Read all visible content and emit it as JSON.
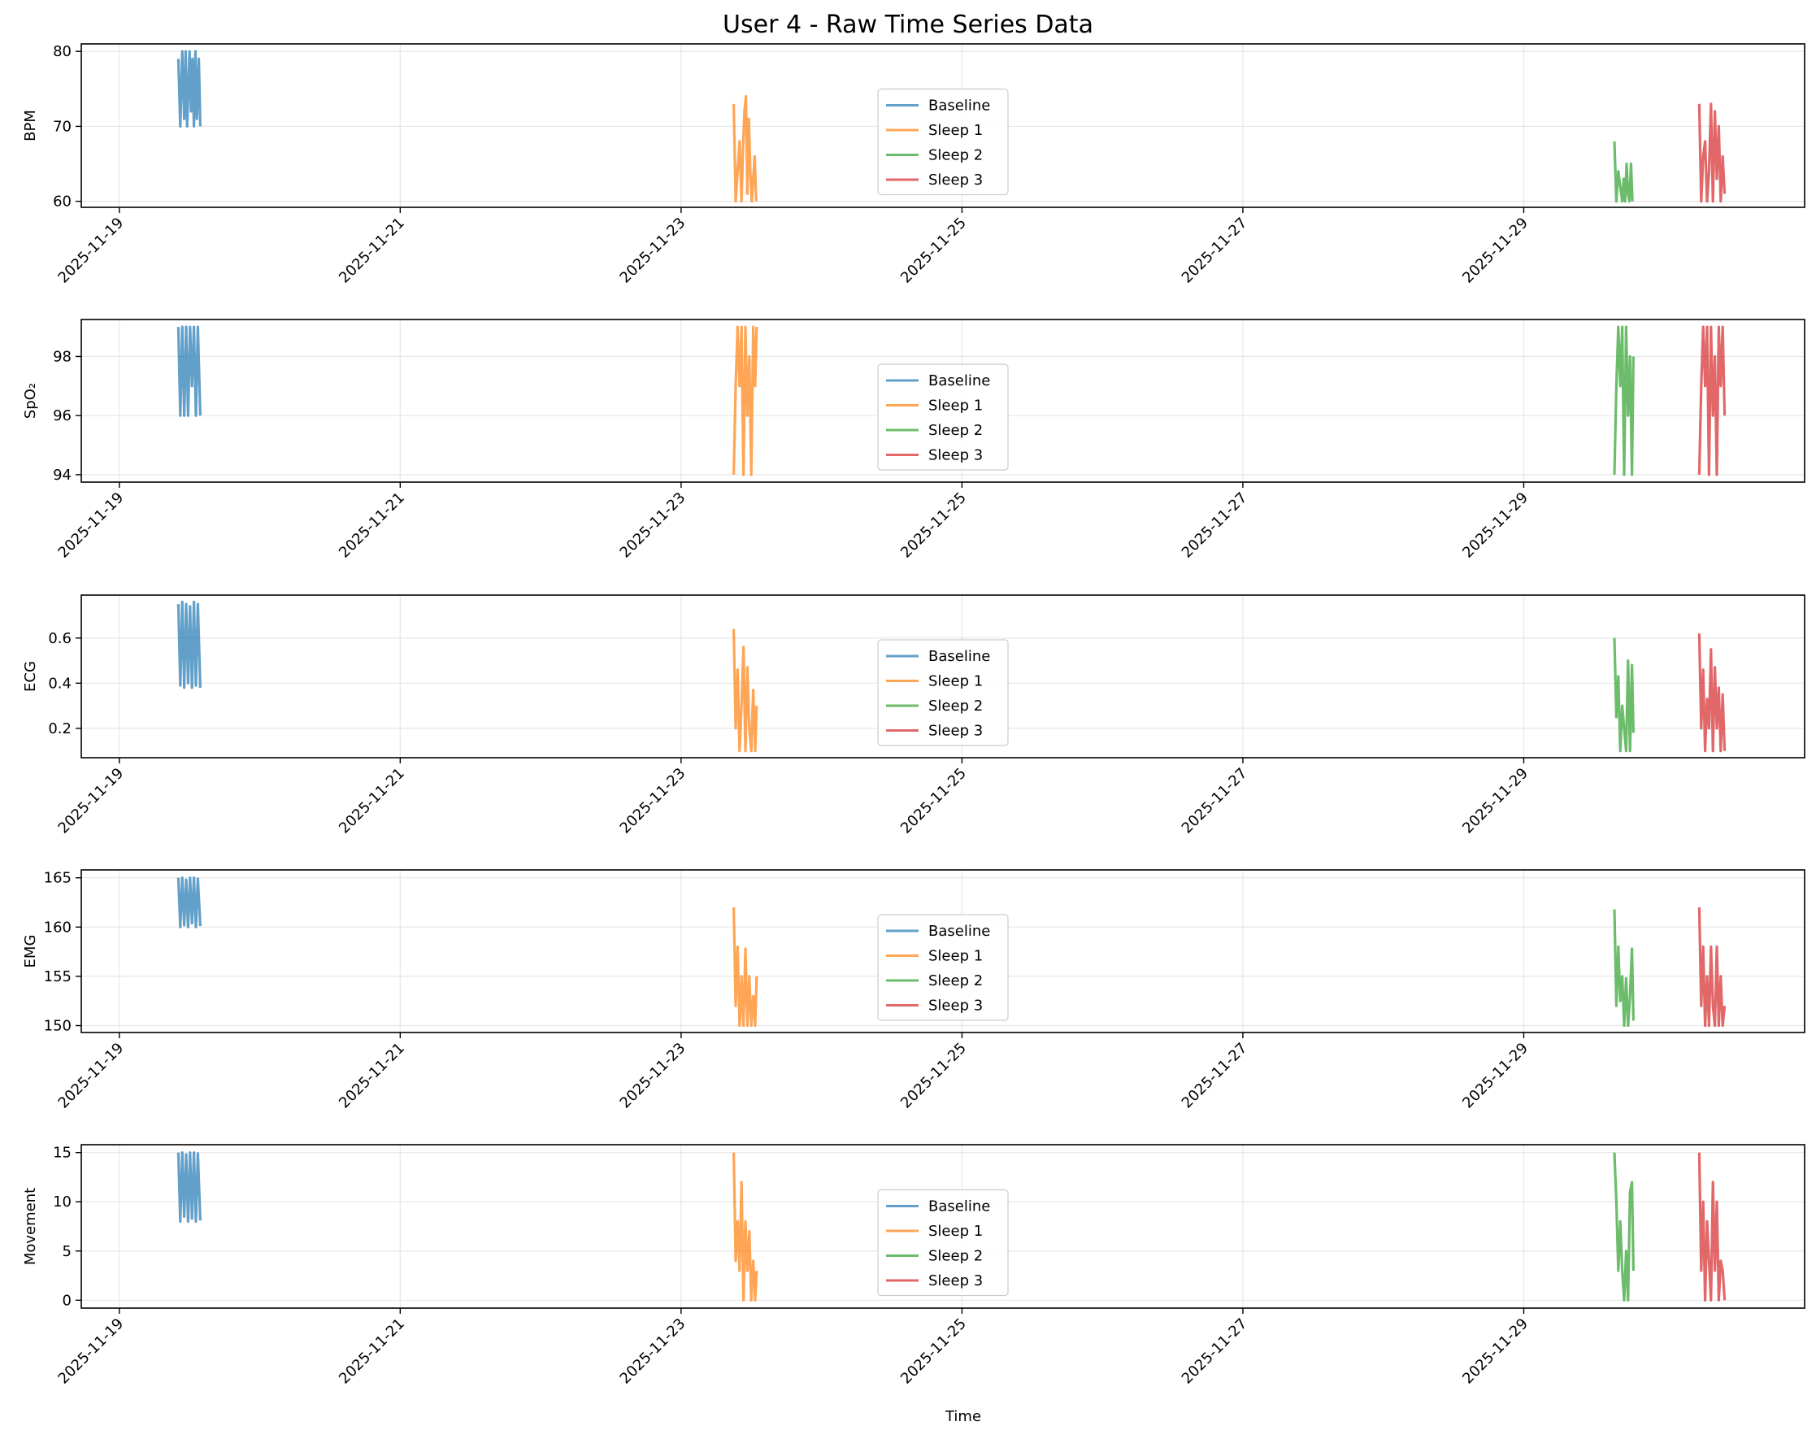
{
  "title": "User 4 - Raw Time Series Data",
  "xlabel": "Time",
  "x_tick_labels": [
    "2025-11-19",
    "2025-11-21",
    "2025-11-23",
    "2025-11-25",
    "2025-11-27",
    "2025-11-29"
  ],
  "legend": {
    "placement": "center",
    "entries": [
      {
        "name": "Baseline",
        "color": "#1f77b4"
      },
      {
        "name": "Sleep 1",
        "color": "#ff7f0e"
      },
      {
        "name": "Sleep 2",
        "color": "#2ca02c"
      },
      {
        "name": "Sleep 3",
        "color": "#d62728"
      }
    ]
  },
  "chart_data": [
    {
      "type": "line",
      "ylabel": "BPM",
      "ylim": [
        59.2,
        81
      ],
      "yticks": [
        60,
        70,
        80
      ],
      "xlim": [
        "2025-11-18T17:30",
        "2025-12-01T00:00"
      ],
      "grid": true,
      "series": [
        {
          "name": "Baseline",
          "color": "#1f77b4",
          "x": [
            "2025-11-19T10:05",
            "2025-11-19T10:25",
            "2025-11-19T10:45",
            "2025-11-19T11:05",
            "2025-11-19T11:20",
            "2025-11-19T11:35",
            "2025-11-19T12:00",
            "2025-11-19T12:15",
            "2025-11-19T12:30",
            "2025-11-19T12:45",
            "2025-11-19T13:00",
            "2025-11-19T13:15",
            "2025-11-19T13:35",
            "2025-11-19T13:50"
          ],
          "y": [
            79,
            70,
            80,
            71,
            80,
            70,
            80,
            72,
            79,
            70,
            80,
            71,
            79,
            70
          ]
        },
        {
          "name": "Sleep 1",
          "color": "#ff7f0e",
          "x": [
            "2025-11-23T09:00",
            "2025-11-23T09:20",
            "2025-11-23T09:40",
            "2025-11-23T10:00",
            "2025-11-23T10:20",
            "2025-11-23T10:35",
            "2025-11-23T10:50",
            "2025-11-23T11:05",
            "2025-11-23T11:20",
            "2025-11-23T11:35",
            "2025-11-23T11:50",
            "2025-11-23T12:05",
            "2025-11-23T12:20",
            "2025-11-23T12:35",
            "2025-11-23T12:50"
          ],
          "y": [
            73,
            60,
            64,
            68,
            60,
            67,
            72,
            74,
            61,
            71,
            64,
            60,
            63,
            66,
            60
          ]
        },
        {
          "name": "Sleep 2",
          "color": "#2ca02c",
          "x": [
            "2025-11-29T15:30",
            "2025-11-29T15:50",
            "2025-11-29T16:10",
            "2025-11-29T16:30",
            "2025-11-29T16:50",
            "2025-11-29T17:05",
            "2025-11-29T17:20",
            "2025-11-29T17:35",
            "2025-11-29T17:50",
            "2025-11-29T18:05",
            "2025-11-29T18:20",
            "2025-11-29T18:35"
          ],
          "y": [
            68,
            60,
            64,
            62,
            60,
            63,
            60,
            65,
            61,
            60,
            65,
            60
          ]
        },
        {
          "name": "Sleep 3",
          "color": "#d62728",
          "x": [
            "2025-11-30T06:00",
            "2025-11-30T06:20",
            "2025-11-30T06:40",
            "2025-11-30T07:00",
            "2025-11-30T07:20",
            "2025-11-30T07:40",
            "2025-11-30T08:00",
            "2025-11-30T08:20",
            "2025-11-30T08:40",
            "2025-11-30T09:00",
            "2025-11-30T09:20",
            "2025-11-30T09:40",
            "2025-11-30T10:00",
            "2025-11-30T10:20"
          ],
          "y": [
            73,
            60,
            66,
            68,
            60,
            64,
            73,
            60,
            72,
            63,
            70,
            60,
            66,
            61
          ]
        }
      ]
    },
    {
      "type": "line",
      "ylabel": "SpO₂",
      "ylim": [
        93.75,
        99.25
      ],
      "yticks": [
        94,
        96,
        98
      ],
      "xlim": [
        "2025-11-18T17:30",
        "2025-12-01T00:00"
      ],
      "grid": true,
      "series": [
        {
          "name": "Baseline",
          "color": "#1f77b4",
          "x": [
            "2025-11-19T10:05",
            "2025-11-19T10:25",
            "2025-11-19T10:45",
            "2025-11-19T11:05",
            "2025-11-19T11:25",
            "2025-11-19T11:45",
            "2025-11-19T12:05",
            "2025-11-19T12:25",
            "2025-11-19T12:45",
            "2025-11-19T13:05",
            "2025-11-19T13:25",
            "2025-11-19T13:50"
          ],
          "y": [
            99,
            96,
            99,
            96,
            99,
            96,
            99,
            97,
            99,
            96,
            99,
            96
          ]
        },
        {
          "name": "Sleep 1",
          "color": "#ff7f0e",
          "x": [
            "2025-11-23T09:00",
            "2025-11-23T09:20",
            "2025-11-23T09:40",
            "2025-11-23T10:00",
            "2025-11-23T10:20",
            "2025-11-23T10:40",
            "2025-11-23T11:00",
            "2025-11-23T11:20",
            "2025-11-23T11:40",
            "2025-11-23T12:00",
            "2025-11-23T12:20",
            "2025-11-23T12:40",
            "2025-11-23T12:55"
          ],
          "y": [
            94,
            97,
            99,
            97,
            99,
            94,
            99,
            96,
            98,
            94,
            99,
            97,
            99
          ]
        },
        {
          "name": "Sleep 2",
          "color": "#2ca02c",
          "x": [
            "2025-11-29T15:30",
            "2025-11-29T15:50",
            "2025-11-29T16:10",
            "2025-11-29T16:30",
            "2025-11-29T16:50",
            "2025-11-29T17:10",
            "2025-11-29T17:30",
            "2025-11-29T17:50",
            "2025-11-29T18:10",
            "2025-11-29T18:30",
            "2025-11-29T18:45"
          ],
          "y": [
            94,
            97,
            99,
            97,
            99,
            94,
            99,
            96,
            98,
            94,
            98
          ]
        },
        {
          "name": "Sleep 3",
          "color": "#d62728",
          "x": [
            "2025-11-30T06:00",
            "2025-11-30T06:20",
            "2025-11-30T06:40",
            "2025-11-30T07:00",
            "2025-11-30T07:20",
            "2025-11-30T07:40",
            "2025-11-30T08:00",
            "2025-11-30T08:20",
            "2025-11-30T08:40",
            "2025-11-30T09:00",
            "2025-11-30T09:20",
            "2025-11-30T09:40",
            "2025-11-30T10:00",
            "2025-11-30T10:20"
          ],
          "y": [
            94,
            97,
            99,
            97,
            99,
            94,
            99,
            96,
            98,
            94,
            99,
            97,
            99,
            96
          ]
        }
      ]
    },
    {
      "type": "line",
      "ylabel": "ECG",
      "ylim": [
        0.07,
        0.79
      ],
      "yticks": [
        0.2,
        0.4,
        0.6
      ],
      "xlim": [
        "2025-11-18T17:30",
        "2025-12-01T00:00"
      ],
      "grid": true,
      "series": [
        {
          "name": "Baseline",
          "color": "#1f77b4",
          "x": [
            "2025-11-19T10:05",
            "2025-11-19T10:25",
            "2025-11-19T10:45",
            "2025-11-19T11:05",
            "2025-11-19T11:25",
            "2025-11-19T11:45",
            "2025-11-19T12:05",
            "2025-11-19T12:25",
            "2025-11-19T12:45",
            "2025-11-19T13:05",
            "2025-11-19T13:25",
            "2025-11-19T13:50"
          ],
          "y": [
            0.75,
            0.39,
            0.76,
            0.38,
            0.75,
            0.4,
            0.74,
            0.38,
            0.76,
            0.39,
            0.75,
            0.38
          ]
        },
        {
          "name": "Sleep 1",
          "color": "#ff7f0e",
          "x": [
            "2025-11-23T09:00",
            "2025-11-23T09:20",
            "2025-11-23T09:40",
            "2025-11-23T10:00",
            "2025-11-23T10:20",
            "2025-11-23T10:40",
            "2025-11-23T11:00",
            "2025-11-23T11:20",
            "2025-11-23T11:40",
            "2025-11-23T12:00",
            "2025-11-23T12:20",
            "2025-11-23T12:40",
            "2025-11-23T12:55"
          ],
          "y": [
            0.64,
            0.2,
            0.46,
            0.1,
            0.3,
            0.56,
            0.1,
            0.47,
            0.2,
            0.1,
            0.37,
            0.1,
            0.3
          ]
        },
        {
          "name": "Sleep 2",
          "color": "#2ca02c",
          "x": [
            "2025-11-29T15:30",
            "2025-11-29T15:50",
            "2025-11-29T16:10",
            "2025-11-29T16:30",
            "2025-11-29T16:50",
            "2025-11-29T17:10",
            "2025-11-29T17:30",
            "2025-11-29T17:50",
            "2025-11-29T18:10",
            "2025-11-29T18:30",
            "2025-11-29T18:45"
          ],
          "y": [
            0.6,
            0.25,
            0.43,
            0.1,
            0.3,
            0.2,
            0.1,
            0.5,
            0.1,
            0.48,
            0.18
          ]
        },
        {
          "name": "Sleep 3",
          "color": "#d62728",
          "x": [
            "2025-11-30T06:00",
            "2025-11-30T06:20",
            "2025-11-30T06:40",
            "2025-11-30T07:00",
            "2025-11-30T07:20",
            "2025-11-30T07:40",
            "2025-11-30T08:00",
            "2025-11-30T08:20",
            "2025-11-30T08:40",
            "2025-11-30T09:00",
            "2025-11-30T09:20",
            "2025-11-30T09:40",
            "2025-11-30T10:00",
            "2025-11-30T10:20"
          ],
          "y": [
            0.62,
            0.2,
            0.46,
            0.1,
            0.33,
            0.2,
            0.55,
            0.1,
            0.47,
            0.2,
            0.38,
            0.1,
            0.35,
            0.1
          ]
        }
      ]
    },
    {
      "type": "line",
      "ylabel": "EMG",
      "ylim": [
        149.3,
        165.8
      ],
      "yticks": [
        150,
        155,
        160,
        165
      ],
      "xlim": [
        "2025-11-18T17:30",
        "2025-12-01T00:00"
      ],
      "grid": true,
      "series": [
        {
          "name": "Baseline",
          "color": "#1f77b4",
          "x": [
            "2025-11-19T10:05",
            "2025-11-19T10:25",
            "2025-11-19T10:45",
            "2025-11-19T11:05",
            "2025-11-19T11:25",
            "2025-11-19T11:45",
            "2025-11-19T12:05",
            "2025-11-19T12:25",
            "2025-11-19T12:45",
            "2025-11-19T13:05",
            "2025-11-19T13:25",
            "2025-11-19T13:50"
          ],
          "y": [
            165,
            160,
            165,
            160.2,
            164.8,
            160,
            165,
            160.4,
            165,
            160,
            164.9,
            160.1
          ]
        },
        {
          "name": "Sleep 1",
          "color": "#ff7f0e",
          "x": [
            "2025-11-23T09:00",
            "2025-11-23T09:20",
            "2025-11-23T09:40",
            "2025-11-23T10:00",
            "2025-11-23T10:20",
            "2025-11-23T10:40",
            "2025-11-23T11:00",
            "2025-11-23T11:20",
            "2025-11-23T11:40",
            "2025-11-23T12:00",
            "2025-11-23T12:20",
            "2025-11-23T12:40",
            "2025-11-23T12:55"
          ],
          "y": [
            162,
            152,
            158,
            150,
            155,
            150,
            157.8,
            150,
            155,
            150,
            153,
            150,
            155
          ]
        },
        {
          "name": "Sleep 2",
          "color": "#2ca02c",
          "x": [
            "2025-11-29T15:30",
            "2025-11-29T15:50",
            "2025-11-29T16:10",
            "2025-11-29T16:30",
            "2025-11-29T16:50",
            "2025-11-29T17:10",
            "2025-11-29T17:30",
            "2025-11-29T17:50",
            "2025-11-29T18:10",
            "2025-11-29T18:30",
            "2025-11-29T18:45"
          ],
          "y": [
            161.8,
            152,
            158,
            152.5,
            155,
            150,
            154.8,
            150,
            153,
            157.8,
            150.5
          ]
        },
        {
          "name": "Sleep 3",
          "color": "#d62728",
          "x": [
            "2025-11-30T06:00",
            "2025-11-30T06:20",
            "2025-11-30T06:40",
            "2025-11-30T07:00",
            "2025-11-30T07:20",
            "2025-11-30T07:40",
            "2025-11-30T08:00",
            "2025-11-30T08:20",
            "2025-11-30T08:40",
            "2025-11-30T09:00",
            "2025-11-30T09:20",
            "2025-11-30T09:40",
            "2025-11-30T10:00",
            "2025-11-30T10:20"
          ],
          "y": [
            162,
            152,
            158,
            150,
            155,
            150,
            158,
            152,
            150,
            158,
            150,
            155,
            150,
            152
          ]
        }
      ]
    },
    {
      "type": "line",
      "ylabel": "Movement",
      "ylim": [
        -0.8,
        15.8
      ],
      "yticks": [
        0,
        5,
        10,
        15
      ],
      "xlim": [
        "2025-11-18T17:30",
        "2025-12-01T00:00"
      ],
      "grid": true,
      "series": [
        {
          "name": "Baseline",
          "color": "#1f77b4",
          "x": [
            "2025-11-19T10:05",
            "2025-11-19T10:25",
            "2025-11-19T10:45",
            "2025-11-19T11:05",
            "2025-11-19T11:25",
            "2025-11-19T11:45",
            "2025-11-19T12:05",
            "2025-11-19T12:25",
            "2025-11-19T12:45",
            "2025-11-19T13:05",
            "2025-11-19T13:25",
            "2025-11-19T13:50"
          ],
          "y": [
            15,
            8,
            15,
            8.5,
            14.8,
            8,
            15,
            8.3,
            15,
            8,
            14.9,
            8.1
          ]
        },
        {
          "name": "Sleep 1",
          "color": "#ff7f0e",
          "x": [
            "2025-11-23T09:00",
            "2025-11-23T09:20",
            "2025-11-23T09:40",
            "2025-11-23T10:00",
            "2025-11-23T10:20",
            "2025-11-23T10:40",
            "2025-11-23T11:00",
            "2025-11-23T11:20",
            "2025-11-23T11:40",
            "2025-11-23T12:00",
            "2025-11-23T12:20",
            "2025-11-23T12:40",
            "2025-11-23T12:55"
          ],
          "y": [
            15,
            4,
            8,
            3,
            12,
            0,
            8,
            3,
            7,
            0,
            4,
            0,
            3
          ]
        },
        {
          "name": "Sleep 2",
          "color": "#2ca02c",
          "x": [
            "2025-11-29T15:30",
            "2025-11-29T15:50",
            "2025-11-29T16:10",
            "2025-11-29T16:30",
            "2025-11-29T16:50",
            "2025-11-29T17:10",
            "2025-11-29T17:30",
            "2025-11-29T17:50",
            "2025-11-29T18:10",
            "2025-11-29T18:30",
            "2025-11-29T18:45"
          ],
          "y": [
            15,
            10,
            3,
            8,
            3,
            0,
            5,
            0,
            11,
            12,
            3
          ]
        },
        {
          "name": "Sleep 3",
          "color": "#d62728",
          "x": [
            "2025-11-30T06:00",
            "2025-11-30T06:20",
            "2025-11-30T06:40",
            "2025-11-30T07:00",
            "2025-11-30T07:20",
            "2025-11-30T07:40",
            "2025-11-30T08:00",
            "2025-11-30T08:20",
            "2025-11-30T08:40",
            "2025-11-30T09:00",
            "2025-11-30T09:20",
            "2025-11-30T09:40",
            "2025-11-30T10:00",
            "2025-11-30T10:20"
          ],
          "y": [
            15,
            3,
            10,
            0,
            8,
            4,
            0,
            12,
            3,
            10,
            0,
            4,
            3,
            0
          ]
        }
      ]
    }
  ]
}
